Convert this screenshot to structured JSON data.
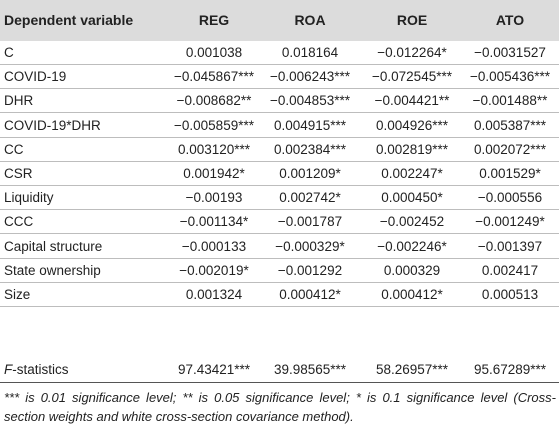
{
  "table": {
    "headers": [
      "Dependent variable",
      "REG",
      "ROA",
      "ROE",
      "ATO"
    ],
    "rows": [
      [
        "C",
        "0.001038",
        "0.018164",
        "−0.012264*",
        "−0.0031527"
      ],
      [
        "COVID-19",
        "−0.045867***",
        "−0.006243***",
        "−0.072545***",
        "−0.005436***"
      ],
      [
        "DHR",
        "−0.008682**",
        "−0.004853***",
        "−0.004421**",
        "−0.001488**"
      ],
      [
        "COVID-19*DHR",
        "−0.005859***",
        "0.004915***",
        "0.004926***",
        "0.005387***"
      ],
      [
        "CC",
        "0.003120***",
        "0.002384***",
        "0.002819***",
        "0.002072***"
      ],
      [
        "CSR",
        "0.001942*",
        "0.001209*",
        "0.002247*",
        "0.001529*"
      ],
      [
        "Liquidity",
        "−0.00193",
        "0.002742*",
        "0.000450*",
        "−0.000556"
      ],
      [
        "CCC",
        "−0.001134*",
        "−0.001787",
        "−0.002452",
        "−0.001249*"
      ],
      [
        "Capital structure",
        "−0.000133",
        "−0.000329*",
        "−0.002246*",
        "−0.001397"
      ],
      [
        "State ownership",
        "−0.002019*",
        "−0.001292",
        "0.000329",
        "0.002417"
      ],
      [
        "Size",
        "0.001324",
        "0.000412*",
        "0.000412*",
        "0.000513"
      ]
    ],
    "fstat_row": {
      "label_f": "F",
      "label_rest": "-statistics",
      "values": [
        "97.43421***",
        "39.98565***",
        "58.26957***",
        "95.67289***"
      ]
    }
  },
  "footnote": "*** is 0.01 significance level; ** is 0.05 significance level; * is 0.1 significance level (Cross-section weights and white cross-section covariance method)."
}
